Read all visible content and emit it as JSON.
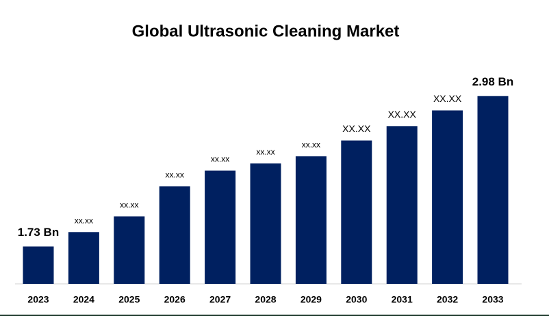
{
  "chart_data": {
    "type": "bar",
    "title": "Global Ultrasonic Cleaning Market",
    "categories": [
      "2023",
      "2024",
      "2025",
      "2026",
      "2027",
      "2028",
      "2029",
      "2030",
      "2031",
      "2032",
      "2033"
    ],
    "values": [
      1.73,
      1.85,
      1.98,
      2.23,
      2.36,
      2.42,
      2.48,
      2.61,
      2.73,
      2.86,
      2.98
    ],
    "value_labels": [
      "1.73 Bn",
      "xx.xx",
      "xx.xx",
      "xx.xx",
      "xx.xx",
      "xx.xx",
      "xx.xx",
      "XX.XX",
      "XX.XX",
      "XX.XX",
      "2.98 Bn"
    ],
    "color": "#002060",
    "ylim": [
      1.42,
      3.05
    ]
  }
}
